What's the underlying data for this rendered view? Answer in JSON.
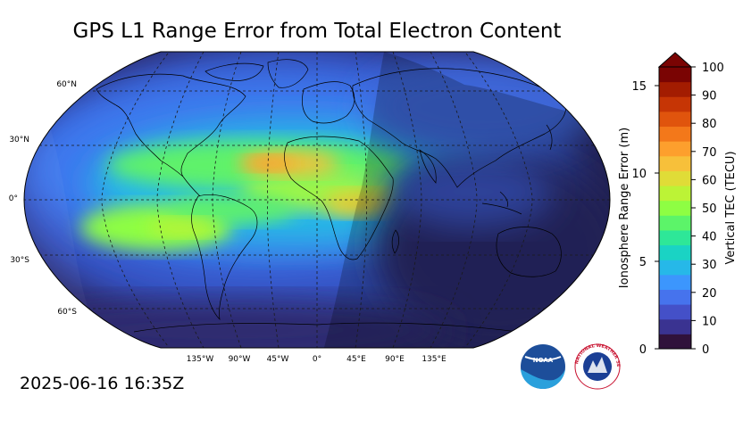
{
  "title": "GPS L1 Range Error from Total Electron Content",
  "timestamp": "2025-06-16 16:35Z",
  "lat_labels": [
    "60°N",
    "30°N",
    "0°",
    "30°S",
    "60°S"
  ],
  "lon_labels": [
    "135°W",
    "90°W",
    "45°W",
    "0°",
    "45°E",
    "90°E",
    "135°E"
  ],
  "colorbar": {
    "left_axis_label": "Ionosphere Range Error (m)",
    "left_ticks": [
      "0",
      "5",
      "10",
      "15"
    ],
    "right_axis_label": "Vertical TEC (TECU)",
    "right_ticks": [
      "0",
      "10",
      "20",
      "30",
      "40",
      "50",
      "60",
      "70",
      "80",
      "90",
      "100"
    ],
    "extend": "max",
    "colors": [
      "#30123b",
      "#3a3391",
      "#4450c8",
      "#4673ed",
      "#3c96fd",
      "#26b8e8",
      "#1ad3c4",
      "#2ee798",
      "#5cf469",
      "#8efe43",
      "#bcf336",
      "#e0dc37",
      "#f7c03a",
      "#fd9f2d",
      "#f3781a",
      "#e0540d",
      "#c63505",
      "#a31c01",
      "#7a0403"
    ]
  },
  "logos": [
    {
      "icon": "noaa-logo",
      "text": "NOAA"
    },
    {
      "icon": "nws-logo",
      "text": "NATIONAL WEATHER SERVICE"
    }
  ]
}
